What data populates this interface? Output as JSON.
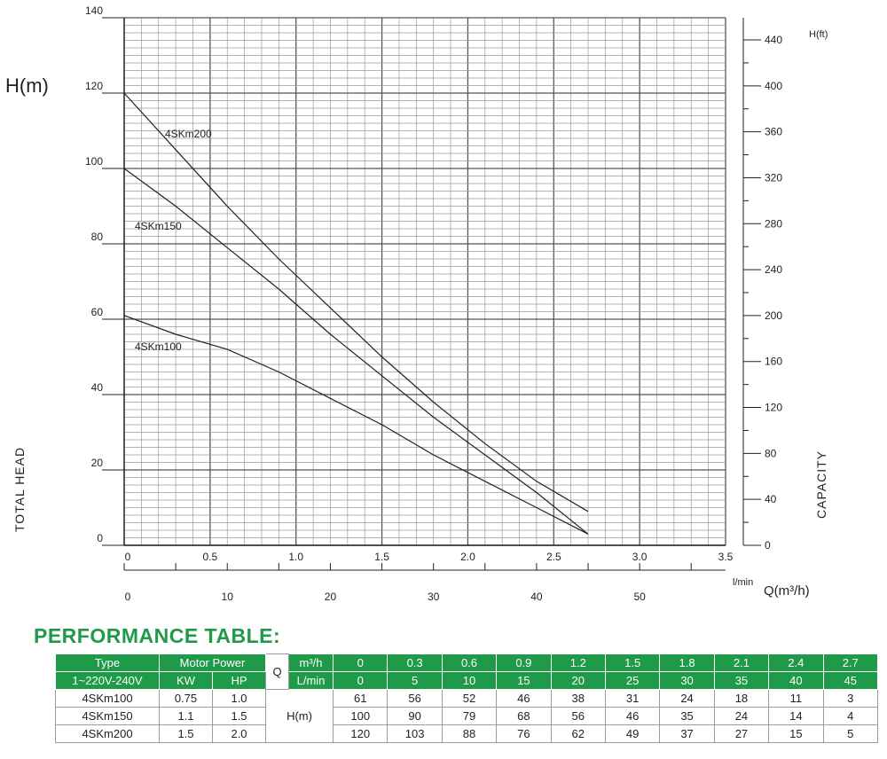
{
  "chart_data": {
    "type": "line",
    "y_unit_label": "H(m)",
    "y_axis_title": "TOTAL HEAD",
    "y_ft_unit_label": "H(ft)",
    "y_ft_axis_title": "CAPACITY",
    "x_ticks": [
      "0",
      "0.5",
      "1.0",
      "1.5",
      "2.0",
      "2.5",
      "3.0",
      "3.5"
    ],
    "x_range": [
      0,
      3.5
    ],
    "y_range": [
      0,
      140
    ],
    "y_ticks": [
      "0",
      "20",
      "40",
      "60",
      "80",
      "100",
      "120",
      "140"
    ],
    "y_ft_ticks": [
      "0",
      "40",
      "80",
      "120",
      "160",
      "200",
      "240",
      "280",
      "320",
      "360",
      "400",
      "440"
    ],
    "lmin_ticks": [
      "0",
      "10",
      "20",
      "30",
      "40",
      "50"
    ],
    "lmin_unit": "l/min",
    "q_unit": "Q(m³/h)",
    "grid": true,
    "x": [
      0,
      0.3,
      0.6,
      0.9,
      1.2,
      1.5,
      1.8,
      2.1,
      2.4,
      2.7
    ],
    "series": [
      {
        "name": "4SKm200",
        "values": [
          120,
          103,
          88,
          76,
          62,
          49,
          37,
          27,
          15,
          5
        ]
      },
      {
        "name": "4SKm150",
        "values": [
          100,
          90,
          79,
          68,
          56,
          46,
          35,
          24,
          14,
          4
        ]
      },
      {
        "name": "4SKm100",
        "values": [
          61,
          56,
          52,
          46,
          38,
          31,
          24,
          18,
          11,
          3
        ]
      }
    ],
    "plot_lines": [
      {
        "name": "4SKm200",
        "values": [
          120,
          105,
          90,
          76,
          63,
          50,
          38,
          27,
          17,
          9
        ]
      },
      {
        "name": "4SKm150",
        "values": [
          100,
          90,
          79,
          68,
          56,
          45,
          34,
          24,
          14,
          3
        ]
      },
      {
        "name": "4SKm100",
        "values": [
          61,
          56,
          52,
          46,
          39,
          32,
          24,
          17,
          10,
          3
        ]
      }
    ]
  },
  "table": {
    "title": "PERFORMANCE TABLE:",
    "type_label": "Type",
    "voltage_label": "1~220V-240V",
    "motor_power_label": "Motor Power",
    "kw_label": "KW",
    "hp_label": "HP",
    "q_label": "Q",
    "m3h_label": "m³/h",
    "lmin_label": "L/min",
    "h_label": "H(m)",
    "m3h_values": [
      "0",
      "0.3",
      "0.6",
      "0.9",
      "1.2",
      "1.5",
      "1.8",
      "2.1",
      "2.4",
      "2.7"
    ],
    "lmin_values": [
      "0",
      "5",
      "10",
      "15",
      "20",
      "25",
      "30",
      "35",
      "40",
      "45"
    ],
    "rows": [
      {
        "model": "4SKm100",
        "kw": "0.75",
        "hp": "1.0",
        "h": [
          "61",
          "56",
          "52",
          "46",
          "38",
          "31",
          "24",
          "18",
          "11",
          "3"
        ]
      },
      {
        "model": "4SKm150",
        "kw": "1.1",
        "hp": "1.5",
        "h": [
          "100",
          "90",
          "79",
          "68",
          "56",
          "46",
          "35",
          "24",
          "14",
          "4"
        ]
      },
      {
        "model": "4SKm200",
        "kw": "1.5",
        "hp": "2.0",
        "h": [
          "120",
          "103",
          "88",
          "76",
          "62",
          "49",
          "37",
          "27",
          "15",
          "5"
        ]
      }
    ]
  }
}
